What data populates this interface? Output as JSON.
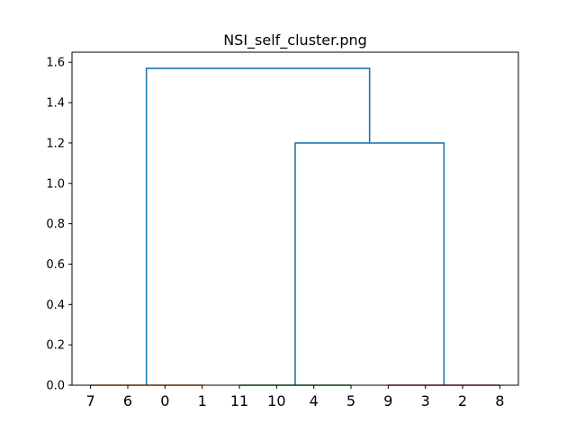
{
  "chart_data": {
    "type": "dendrogram",
    "title": "NSI_self_cluster.png",
    "xlabel": "",
    "ylabel": "",
    "ylim": [
      0,
      1.65
    ],
    "yticks": [
      "0.0",
      "0.2",
      "0.4",
      "0.6",
      "0.8",
      "1.0",
      "1.2",
      "1.4",
      "1.6"
    ],
    "yticks_values": [
      0,
      0.2,
      0.4,
      0.6,
      0.8,
      1.0,
      1.2,
      1.4,
      1.6
    ],
    "leaf_labels": [
      "7",
      "6",
      "0",
      "1",
      "11",
      "10",
      "4",
      "5",
      "9",
      "3",
      "2",
      "8"
    ],
    "grid": false,
    "clusters": [
      {
        "leaves": [
          "7",
          "6",
          "0",
          "1"
        ],
        "color": "#ff7f0e",
        "merge_height": 0.0
      },
      {
        "leaves": [
          "11",
          "10",
          "4",
          "5"
        ],
        "color": "#2ca02c",
        "merge_height": 0.0
      },
      {
        "leaves": [
          "9",
          "3",
          "2",
          "8"
        ],
        "color": "#d62728",
        "merge_height": 0.0
      }
    ],
    "links": [
      {
        "left": "cluster-2",
        "right": "cluster-3",
        "height": 1.2,
        "color": "#1f77b4"
      },
      {
        "left": "cluster-1",
        "right": "cluster-2+3",
        "height": 1.57,
        "color": "#1f77b4"
      }
    ]
  }
}
